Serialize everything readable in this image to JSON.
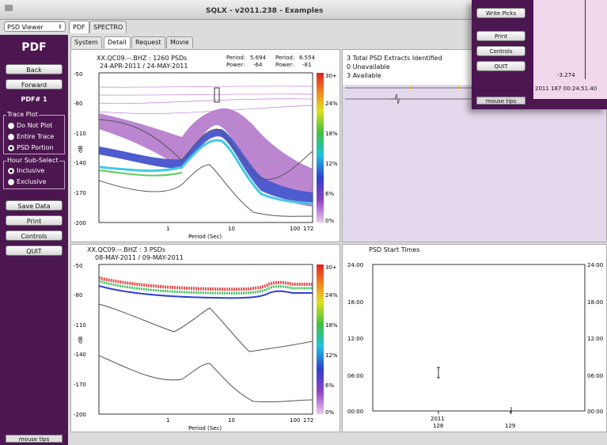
{
  "window": {
    "title": "SQLX - v2011.238 - Examples"
  },
  "viewer_select": {
    "value": "PSD Viewer"
  },
  "top_tabs": [
    {
      "label": "PDF"
    },
    {
      "label": "SPECTRO"
    }
  ],
  "sub_tabs": [
    {
      "label": "System"
    },
    {
      "label": "Detail"
    },
    {
      "label": "Request"
    },
    {
      "label": "Movie"
    }
  ],
  "sidebar": {
    "heading": "PDF",
    "back": "Back",
    "forward": "Forward",
    "pdf_number": "PDF# 1",
    "trace_plot": {
      "label": "Trace Plot",
      "options": [
        "Do Not Plot",
        "Entire Trace",
        "PSD Portion"
      ],
      "selected": "PSD Portion"
    },
    "hour_subselect": {
      "label": "Hour Sub-Select",
      "options": [
        "Inclusive",
        "Exclusive"
      ],
      "selected": "Inclusive"
    },
    "save_data": "Save Data",
    "print": "Print",
    "controls": "Controls",
    "quit": "QUIT",
    "mouse_tips": "mouse tips"
  },
  "overlay": {
    "write_picks": "Write Picks",
    "print": "Print",
    "controls": "Controls",
    "quit": "QUIT",
    "mouse_tips": "mouse tips",
    "value": "-3.274",
    "timestamp": "2011 187 00:24:51.40"
  },
  "pdf_top": {
    "station": "XX.QC09.--.BHZ : 1260 PSDs",
    "dates": "24-APR-2011 / 24-MAY-2011",
    "period1_label": "Period:",
    "period1": "5.694",
    "power1_label": "Power:",
    "power1": "-64",
    "period2_label": "Period:",
    "period2": "6.554",
    "power2_label": "Power:",
    "power2": "-81",
    "ylabel": "dB",
    "xlabel": "Period (Sec)",
    "yticks": [
      "-50",
      "-80",
      "-110",
      "-140",
      "-170",
      "-200"
    ],
    "xticks": [
      "1",
      "10",
      "100",
      "172"
    ],
    "cbar_ticks": [
      "30+",
      "24%",
      "18%",
      "12%",
      "6%",
      "0%"
    ]
  },
  "extracts": {
    "line1": "3 Total PSD Extracts Identified",
    "line2": "0 Unavailable",
    "line3": "3 Available"
  },
  "pdf_bottom": {
    "station": "XX.QC09.--.BHZ : 3 PSDs",
    "dates": "08-MAY-2011 / 09-MAY-2011",
    "ylabel": "dB",
    "xlabel": "Period (Sec)",
    "yticks": [
      "-50",
      "-80",
      "-110",
      "-140",
      "-170",
      "-200"
    ],
    "xticks": [
      "1",
      "10",
      "100",
      "172"
    ],
    "cbar_ticks": [
      "30+",
      "24%",
      "18%",
      "12%",
      "6%",
      "0%"
    ]
  },
  "start_times": {
    "title": "PSD Start Times",
    "yticks": [
      "24:00",
      "18:00",
      "12:00",
      "06:00",
      "00:00"
    ],
    "x_year": "2011",
    "xticks": [
      "128",
      "129"
    ]
  },
  "colors": {
    "sidebar": "#4c1650",
    "panel_bg": "#ffffff",
    "extract_bg": "#e4d8ec",
    "pink": "#f3d7ea"
  }
}
